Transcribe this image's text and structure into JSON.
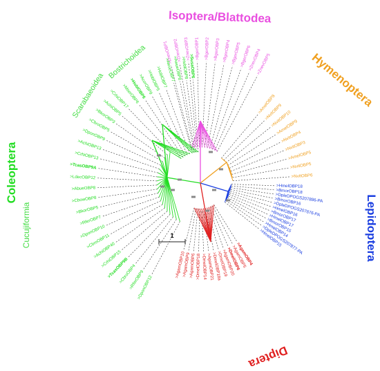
{
  "colors": {
    "isoptera": "#e94fe0",
    "hymenoptera": "#f0a020",
    "lepidoptera": "#1a3ee0",
    "diptera": "#e02020",
    "coleoptera": "#22dd22",
    "dash": "#333333",
    "node": "#888888"
  },
  "orders": {
    "isoptera": "Isoptera/Blattodea",
    "hymenoptera": "Hymenoptera",
    "lepidoptera": "Lepidoptera",
    "diptera": "Diptera",
    "coleoptera": "Coleoptera",
    "cucujiformia": "Cucujiformia",
    "scarabaeoidea": "Scarabaeoidea",
    "bostrichoidea": "Bostrichoidea"
  },
  "scale_bar": {
    "label": "1"
  },
  "leaves": {
    "isoptera": [
      ">ZnevOBP1",
      ">ZnevOBP2",
      ">ZnevOBP3",
      ">BgerOBP1",
      ">BgerOBP2",
      ">BgerOBP3",
      ">BgerOBP4",
      ">BgerOBP5",
      ">BgerOBP6",
      ">ZnevOBP4",
      ">ZnevOBP5"
    ],
    "hymenoptera": [
      ">AmelOBP8",
      ">NvitOBP9",
      ">NvitOBP10",
      ">AmelOBP9",
      ">NvitOBP4",
      ">NvitOBP3",
      ">AmelOBP5",
      ">NvitOBP5",
      ">NvitOBP6"
    ],
    "lepidoptera": [
      ">HmelOBP18",
      ">BmorOBP18",
      ">DpleDPOGS207886-PA",
      ">BmorOBP16",
      ">DpleDPOGS207876-PA",
      ">HmelOBP16",
      ">BmorOBP17",
      ">HmelOBP17",
      ">BmorOBP15",
      ">HmelOBP14",
      ">DpleDPOGS207877-PA",
      ">HmelOBP15"
    ],
    "diptera": [
      ">AgamOBP4",
      ">AgamOBP5",
      ">DmelOBP6",
      ">AgamOBP20",
      ">DmelOBP19",
      ">DmelOBP18a",
      ">AgamOBP21",
      ">DmelOBP14",
      ">DmelOBP18",
      ">AgamOBP6",
      ">AgamOBP9",
      ">AgamOBP10"
    ],
    "coleoptera": [
      ">DponOBP12",
      ">RferOBP9",
      ">CbroOBP4",
      ">TcasOBP9B",
      ">CrhiOBP15",
      ">AchiOBP40",
      ">CbroOBP11",
      ">DponOBP10",
      ">RferOBP7",
      ">BkorOBP5",
      ">CbowOBP8",
      ">AbueOBP8",
      ">LdecOBP12",
      ">TcasOBP9A",
      ">CrhiOBP13",
      ">AchiOBP13",
      ">DponOBP9",
      ">CbroOBP5",
      ">BkorOBP3",
      ">AchiOBP5",
      ">CrhiOBP17"
    ],
    "scarab": [
      ">MserOBP6",
      ">HoblOBP6",
      ">AcorOBP9",
      ">HoblOBP5",
      ">HoblOBP7"
    ],
    "bostrich": [
      ">AwueOBP7",
      ">AwueOBP8",
      ">HoblOBP8",
      ">SusaOBP6"
    ]
  }
}
